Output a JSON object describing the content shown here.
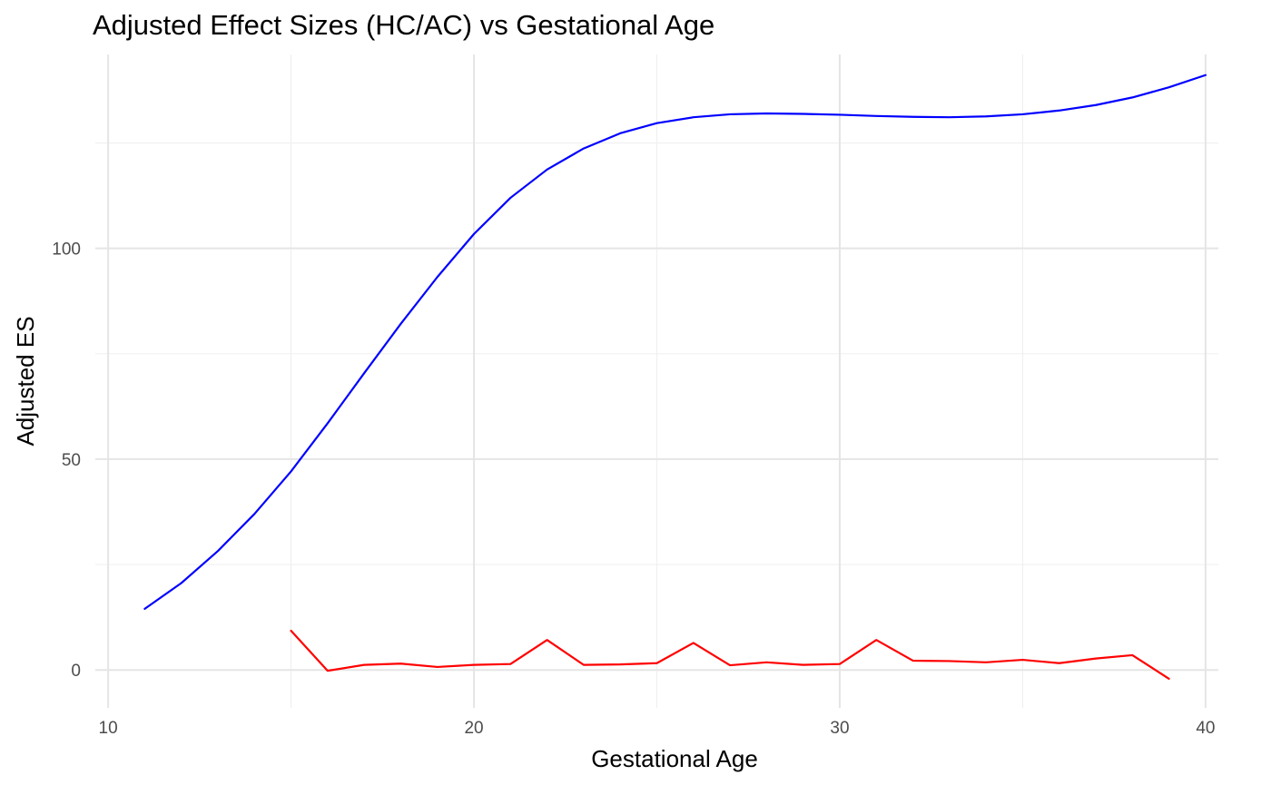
{
  "chart_data": {
    "type": "line",
    "title": "Adjusted Effect Sizes (HC/AC) vs Gestational Age",
    "xlabel": "Gestational Age",
    "ylabel": "Adjusted ES",
    "xlim": [
      9.65,
      40.35
    ],
    "ylim": [
      -9,
      146
    ],
    "x_ticks": [
      10,
      20,
      30,
      40
    ],
    "y_ticks": [
      0,
      50,
      100
    ],
    "x_minor_ticks": [
      15,
      25,
      35
    ],
    "y_minor_ticks": [
      25,
      75,
      125
    ],
    "grid": true,
    "legend": "none",
    "series": [
      {
        "color": "#0000ff",
        "x": [
          11,
          12,
          13,
          14,
          15,
          16,
          17,
          18,
          19,
          20,
          21,
          22,
          23,
          24,
          25,
          26,
          27,
          28,
          29,
          30,
          31,
          32,
          33,
          34,
          35,
          36,
          37,
          38,
          39,
          40
        ],
        "values": [
          14.5,
          20.6,
          28.2,
          37,
          47.1,
          58.5,
          70.4,
          82.1,
          93.2,
          103.4,
          112,
          118.7,
          123.7,
          127.3,
          129.7,
          131.1,
          131.8,
          132,
          131.9,
          131.7,
          131.4,
          131.2,
          131.1,
          131.3,
          131.8,
          132.7,
          134,
          135.8,
          138.2,
          141.1
        ]
      },
      {
        "color": "#ff0000",
        "x": [
          15,
          16,
          17,
          18,
          19,
          20,
          21,
          22,
          23,
          24,
          25,
          26,
          27,
          28,
          29,
          30,
          31,
          32,
          33,
          34,
          35,
          36,
          37,
          38,
          39
        ],
        "values": [
          9.3,
          -0.2,
          1.2,
          1.5,
          0.7,
          1.2,
          1.4,
          7.1,
          1.2,
          1.3,
          1.6,
          6.4,
          1.1,
          1.8,
          1.2,
          1.4,
          7.1,
          2.2,
          2.1,
          1.8,
          2.4,
          1.6,
          2.7,
          3.5,
          -2.1
        ]
      }
    ]
  }
}
